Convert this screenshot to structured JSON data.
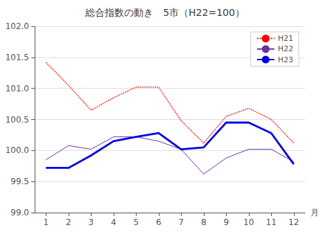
{
  "chart_data": {
    "type": "line",
    "title": "総合指数の動き　5市（H22=100）",
    "xlabel": "月",
    "x": [
      1,
      2,
      3,
      4,
      5,
      6,
      7,
      8,
      9,
      10,
      11,
      12
    ],
    "xlim": [
      0.5,
      12.5
    ],
    "xticks": [
      1,
      2,
      3,
      4,
      5,
      6,
      7,
      8,
      9,
      10,
      11,
      12
    ],
    "ylim": [
      99.0,
      102.0
    ],
    "yticks": [
      {
        "value": 99.0,
        "label": "99.0"
      },
      99.5,
      {
        "value": 100.0,
        "label": "100.0"
      },
      100.5,
      {
        "value": 101.0,
        "label": "101.0"
      },
      101.5,
      {
        "value": 102.0,
        "label": "102.0"
      }
    ],
    "grid": true,
    "legend": "upper right",
    "series": [
      {
        "name": "H21",
        "color": "#ff0000",
        "line_style": "dotted",
        "values": [
          101.42,
          101.05,
          100.65,
          100.85,
          101.02,
          101.02,
          100.48,
          100.12,
          100.55,
          100.68,
          100.5,
          100.12
        ]
      },
      {
        "name": "H22",
        "color": "#7030a0",
        "line_style": "solid",
        "values": [
          99.85,
          100.08,
          100.02,
          100.22,
          100.22,
          100.15,
          100.02,
          99.62,
          99.88,
          100.02,
          100.02,
          99.82
        ]
      },
      {
        "name": "H23",
        "color": "#0000dd",
        "line_style": "solid",
        "values": [
          99.72,
          99.72,
          99.92,
          100.15,
          100.22,
          100.28,
          100.02,
          100.05,
          100.45,
          100.45,
          100.28,
          99.78
        ]
      }
    ]
  }
}
